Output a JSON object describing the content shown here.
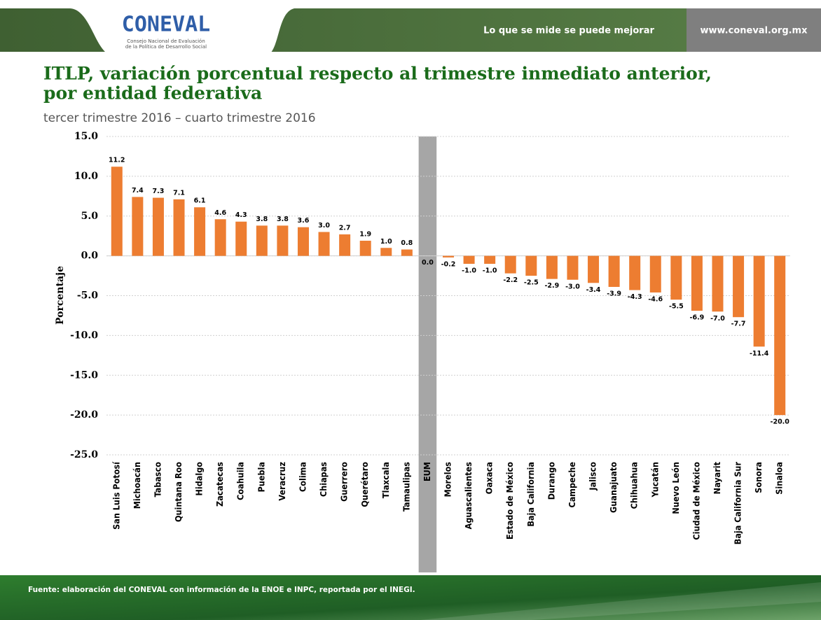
{
  "header": {
    "logo": "CONEVAL",
    "logo_subtitle": [
      "Consejo Nacional de Evaluación",
      "de la Política de Desarrollo Social"
    ],
    "tagline": "Lo que se mide se puede mejorar",
    "url": "www.coneval.org.mx"
  },
  "chart_data": {
    "type": "bar",
    "title": [
      "ITLP, variación porcentual respecto al trimestre inmediato anterior,",
      "por entidad federativa"
    ],
    "subtitle": "tercer trimestre 2016 – cuarto trimestre 2016",
    "y_label": "Porcentaje",
    "categories": [
      "San Luis Potosí",
      "Michoacán",
      "Tabasco",
      "Quintana Roo",
      "Hidalgo",
      "Zacatecas",
      "Coahuila",
      "Puebla",
      "Veracruz",
      "Colima",
      "Chiapas",
      "Guerrero",
      "Querétaro",
      "Tlaxcala",
      "Tamaulipas",
      "EUM",
      "Morelos",
      "Aguascalientes",
      "Oaxaca",
      "Estado de México",
      "Baja California",
      "Durango",
      "Campeche",
      "Jalisco",
      "Guanajuato",
      "Chihuahua",
      "Yucatán",
      "Nuevo León",
      "Ciudad de México",
      "Nayarit",
      "Baja California Sur",
      "Sonora",
      "Sinaloa"
    ],
    "values": [
      11.2,
      7.4,
      7.3,
      7.1,
      6.1,
      4.6,
      4.3,
      3.8,
      3.8,
      3.6,
      3.0,
      2.7,
      1.9,
      1.0,
      0.8,
      0.0,
      -0.2,
      -1.0,
      -1.0,
      -2.2,
      -2.5,
      -2.9,
      -3.0,
      -3.4,
      -3.9,
      -4.3,
      -4.6,
      -5.5,
      -6.9,
      -7.0,
      -7.7,
      -11.4,
      -20.0
    ],
    "value_labels": [
      "11.2",
      "7.4",
      "7.3",
      "7.1",
      "6.1",
      "4.6",
      "4.3",
      "3.8",
      "3.8",
      "3.6",
      "3.0",
      "2.7",
      "1.9",
      "1.0",
      "0.8",
      "0.0",
      "-0.2",
      "-1.0",
      "-1.0",
      "-2.2",
      "-2.5",
      "-2.9",
      "-3.0",
      "-3.4",
      "-3.9",
      "-4.3",
      "-4.6",
      "-5.5",
      "-6.9",
      "-7.0",
      "-7.7",
      "-11.4",
      "-20.0"
    ],
    "color": "#ed7d31",
    "highlight": "EUM",
    "highlight_color": "#a6a6a6",
    "ylim": [
      -25,
      15
    ],
    "yticks": [
      {
        "value": -25,
        "label": "-25.0"
      },
      {
        "value": -20,
        "label": "-20.0"
      },
      {
        "value": -15,
        "label": "-15.0"
      },
      {
        "value": -10,
        "label": "-10.0"
      },
      {
        "value": -5,
        "label": "-5.0"
      },
      {
        "value": 0,
        "label": "0.0"
      },
      {
        "value": 5,
        "label": "5.0"
      },
      {
        "value": 10,
        "label": "10.0"
      },
      {
        "value": 15,
        "label": "15.0"
      }
    ],
    "grid": true
  },
  "footer": {
    "source": "Fuente: elaboración del CONEVAL con información de la ENOE e INPC, reportada por el INEGI."
  }
}
